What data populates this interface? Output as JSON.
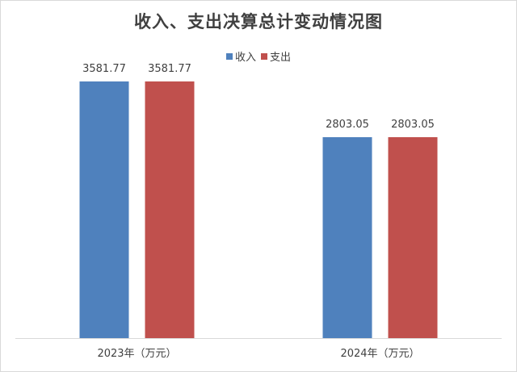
{
  "chart_data": {
    "type": "bar",
    "title": "收入、支出决算总计变动情况图",
    "categories": [
      "2023年（万元）",
      "2024年（万元）"
    ],
    "series": [
      {
        "name": "收入",
        "values": [
          3581.77,
          2803.05
        ],
        "color": "#4f81bd",
        "labels": [
          "3581.77",
          "2803.05"
        ]
      },
      {
        "name": "支出",
        "values": [
          3581.77,
          2803.05
        ],
        "color": "#c0504d",
        "labels": [
          "3581.77",
          "2803.05"
        ]
      }
    ],
    "ylim": [
      0,
      4000
    ],
    "grid": false,
    "legend_position": "top-center",
    "xlabel": "",
    "ylabel": ""
  }
}
